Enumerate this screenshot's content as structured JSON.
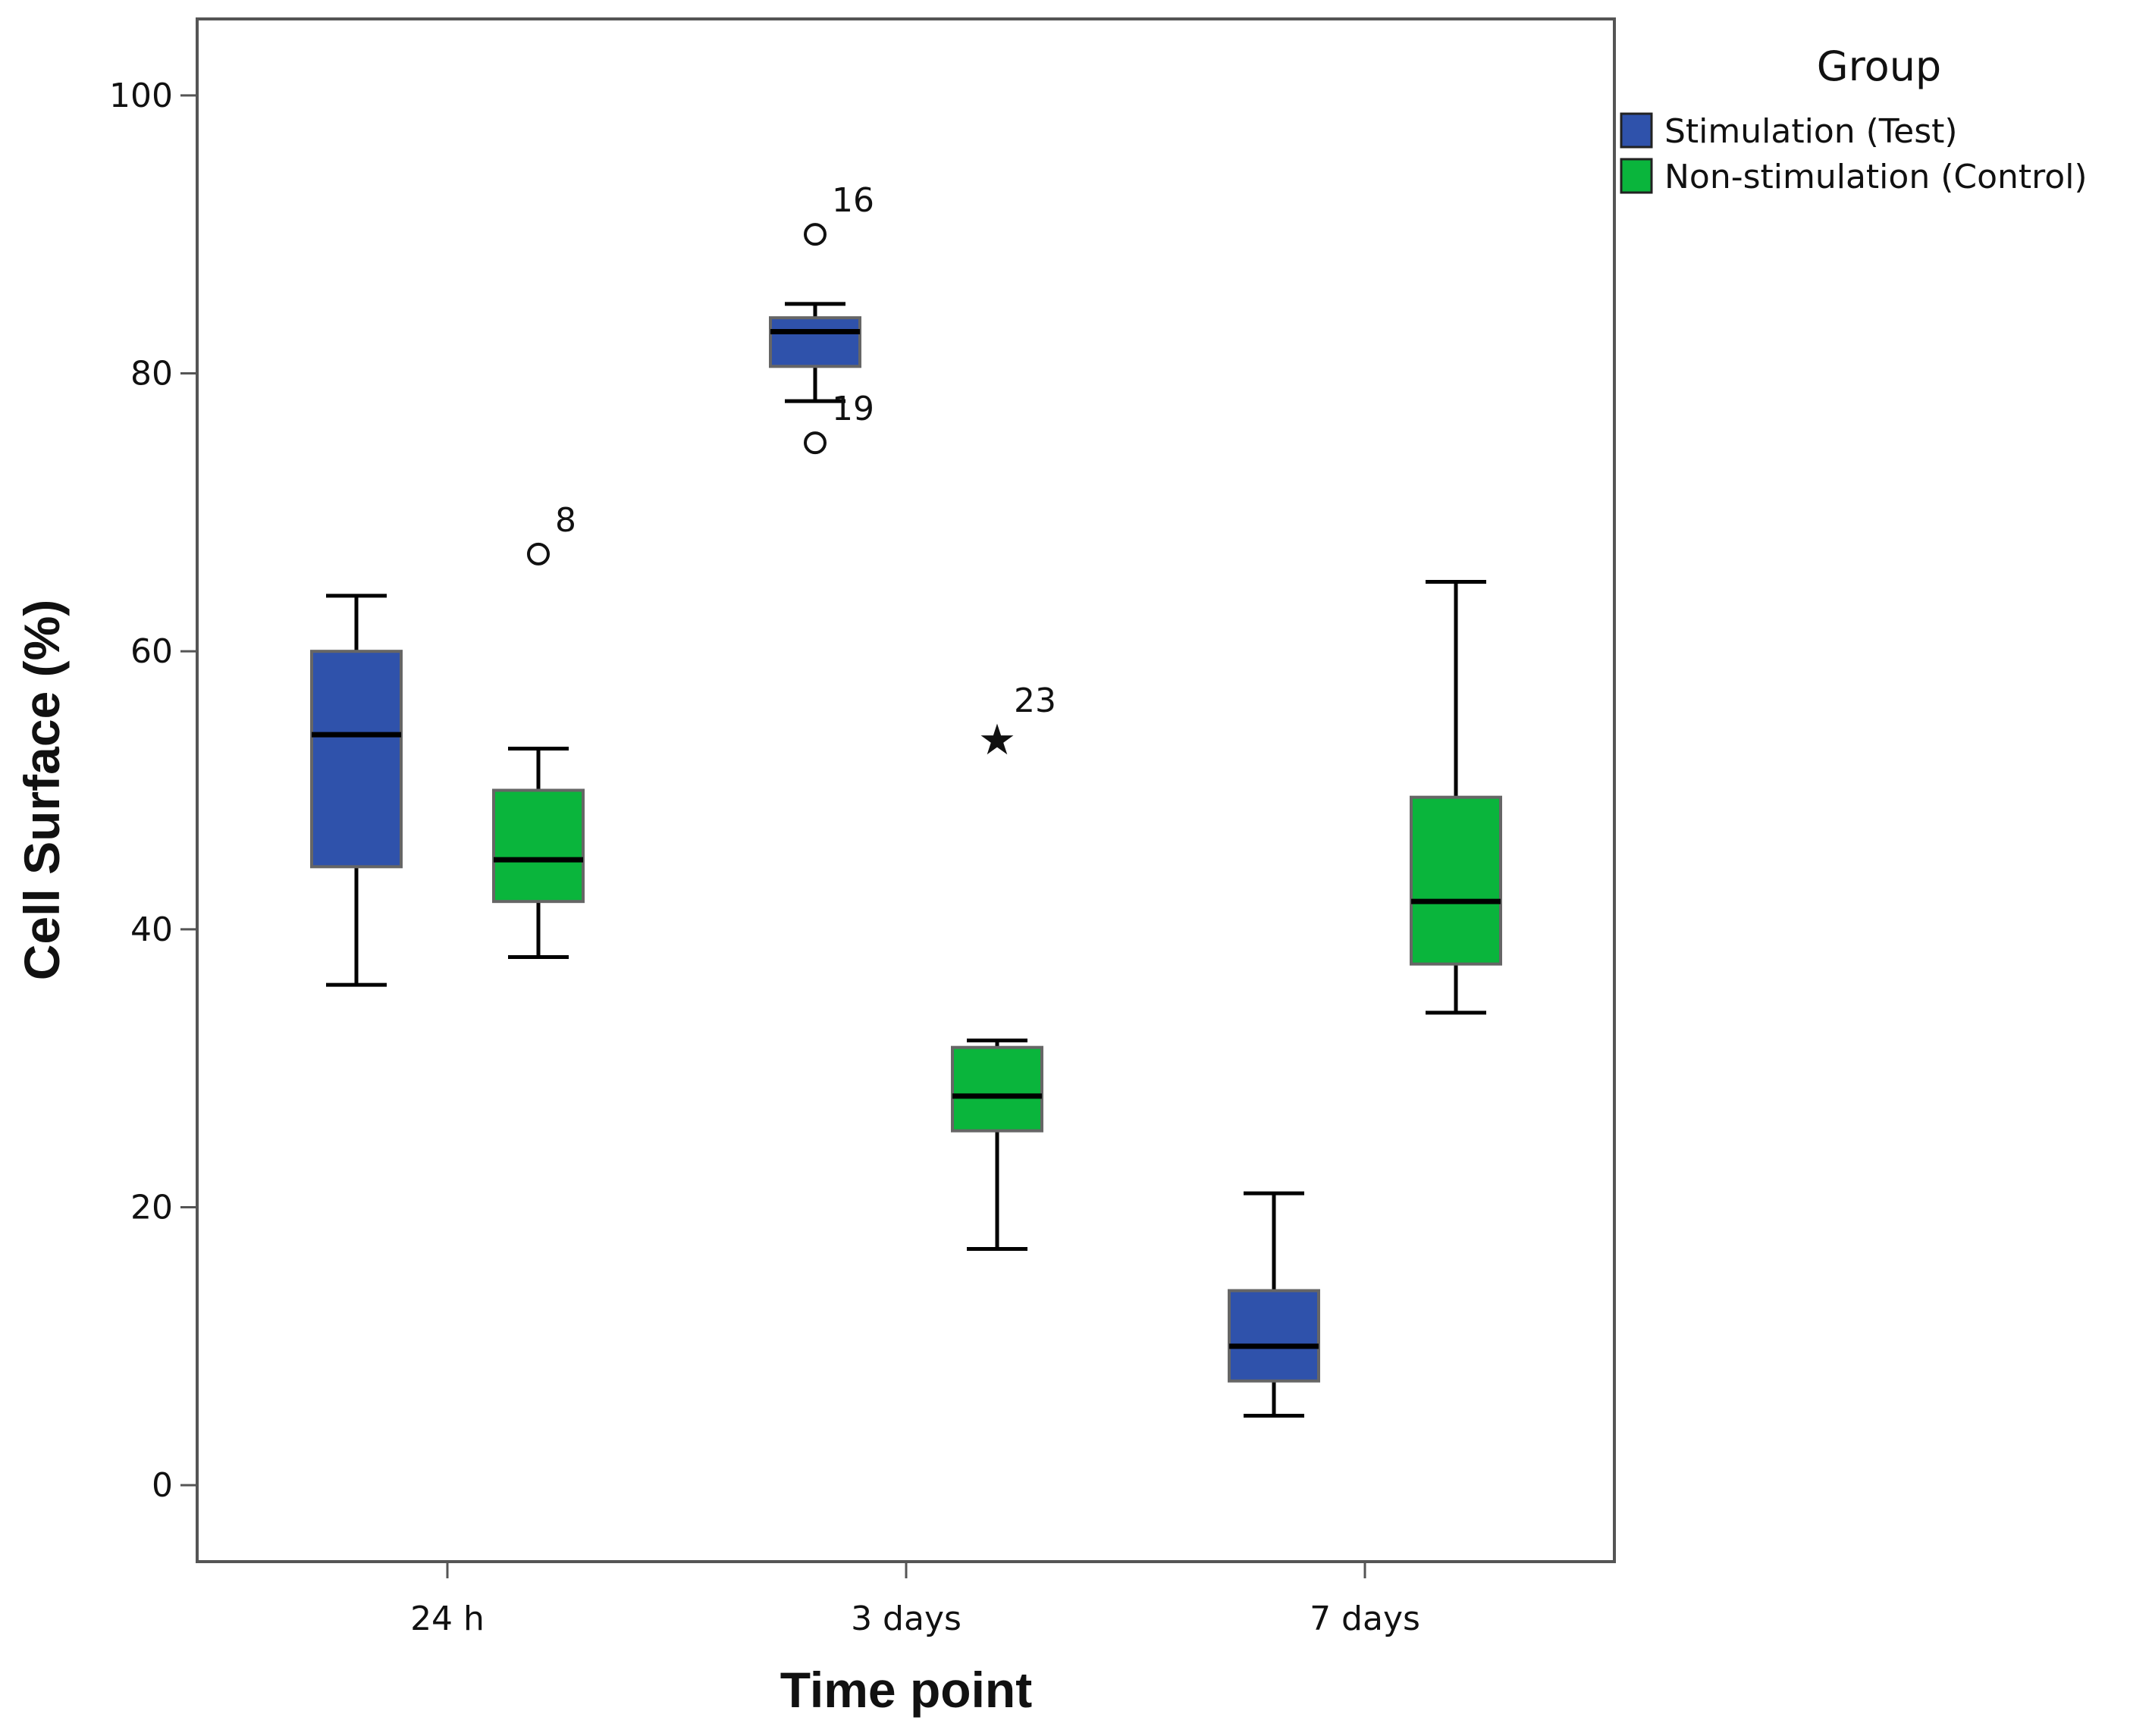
{
  "chart_data": {
    "type": "boxplot",
    "title": "",
    "xlabel": "Time point",
    "ylabel": "Cell Surface (%)",
    "ylim": [
      -5.5,
      105.5
    ],
    "yticks": [
      0,
      20,
      40,
      60,
      80,
      100
    ],
    "categories": [
      "24 h",
      "3 days",
      "7 days"
    ],
    "legend": {
      "title": "Group",
      "position": "right"
    },
    "series": [
      {
        "name": "Stimulation (Test)",
        "color": "#2F52AB",
        "boxes": [
          {
            "category": "24 h",
            "min": 36,
            "q1": 44.5,
            "median": 54,
            "q3": 60,
            "max": 64,
            "outliers": []
          },
          {
            "category": "3 days",
            "min": 78,
            "q1": 80.5,
            "median": 83,
            "q3": 84,
            "max": 85,
            "outliers": [
              {
                "value": 90,
                "label": "16",
                "marker": "circle"
              },
              {
                "value": 75,
                "label": "19",
                "marker": "circle"
              }
            ]
          },
          {
            "category": "7 days",
            "min": 5,
            "q1": 7.5,
            "median": 10,
            "q3": 14,
            "max": 21,
            "outliers": []
          }
        ]
      },
      {
        "name": "Non-stimulation (Control)",
        "color": "#0AB53C",
        "boxes": [
          {
            "category": "24 h",
            "min": 38,
            "q1": 42,
            "median": 45,
            "q3": 50,
            "max": 53,
            "outliers": [
              {
                "value": 67,
                "label": "8",
                "marker": "circle"
              }
            ]
          },
          {
            "category": "3 days",
            "min": 17,
            "q1": 25.5,
            "median": 28,
            "q3": 31.5,
            "max": 32,
            "outliers": [
              {
                "value": 54,
                "label": "23",
                "marker": "star"
              }
            ]
          },
          {
            "category": "7 days",
            "min": 34,
            "q1": 37.5,
            "median": 42,
            "q3": 49.5,
            "max": 65,
            "outliers": []
          }
        ]
      }
    ]
  }
}
